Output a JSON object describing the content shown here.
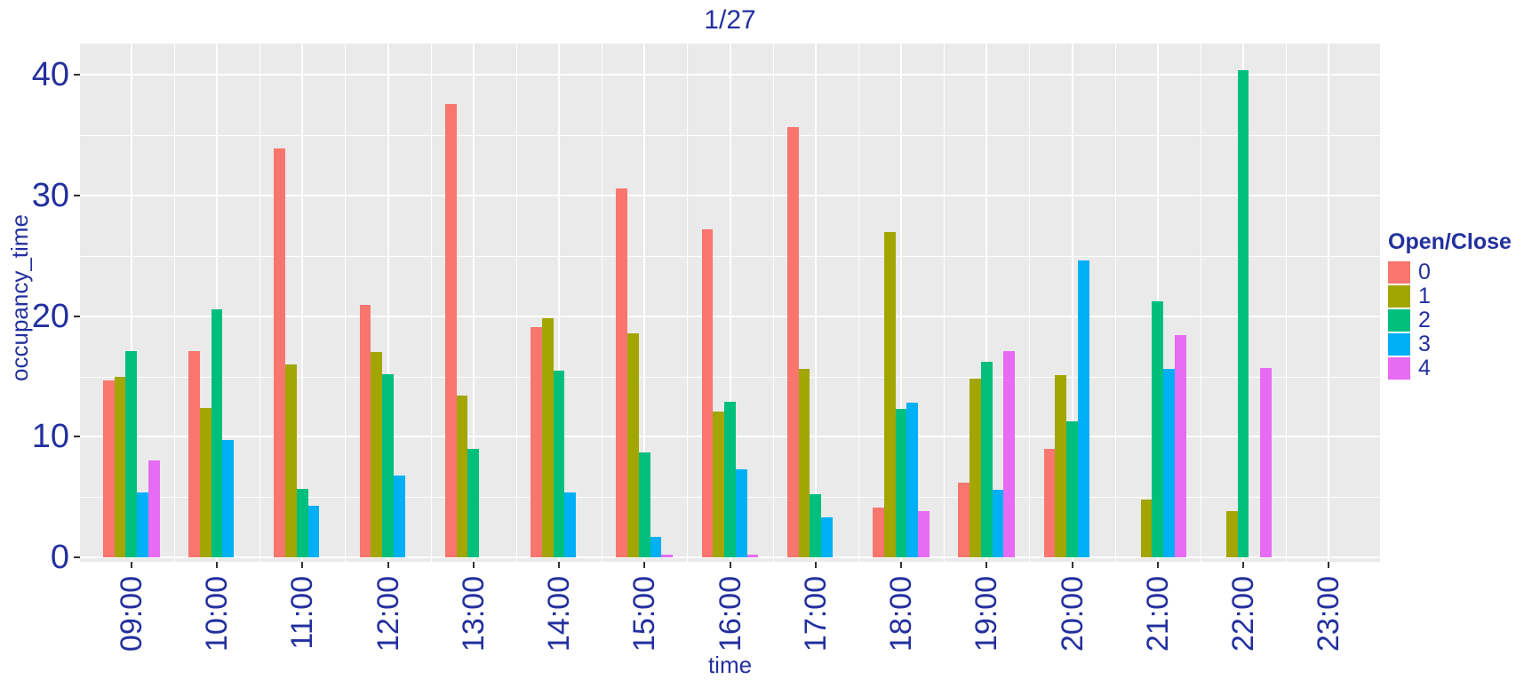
{
  "title": "1/27",
  "y_axis": {
    "label": "occupancy_time",
    "ticks": [
      0,
      10,
      20,
      30,
      40
    ]
  },
  "x_axis": {
    "label": "time"
  },
  "legend": {
    "title": "Open/Close"
  },
  "chart_data": {
    "type": "bar",
    "title": "1/27",
    "xlabel": "time",
    "ylabel": "occupancy_time",
    "ylim": [
      0,
      42.6
    ],
    "grid": true,
    "legend_title": "Open/Close",
    "legend_position": "right",
    "bar_mode": "grouped",
    "categories": [
      "09:00",
      "10:00",
      "11:00",
      "12:00",
      "13:00",
      "14:00",
      "15:00",
      "16:00",
      "17:00",
      "18:00",
      "19:00",
      "20:00",
      "21:00",
      "22:00",
      "23:00"
    ],
    "series": [
      {
        "name": "0",
        "color": "#F8766D",
        "values": [
          14.7,
          17.1,
          33.9,
          20.9,
          37.6,
          19.1,
          30.6,
          27.2,
          35.7,
          4.1,
          6.2,
          9.0,
          0,
          0,
          0
        ]
      },
      {
        "name": "1",
        "color": "#A3A500",
        "values": [
          15.0,
          12.4,
          16.0,
          17.0,
          13.4,
          19.8,
          18.6,
          12.1,
          15.6,
          27.0,
          14.8,
          15.1,
          4.8,
          3.8,
          0
        ]
      },
      {
        "name": "2",
        "color": "#00BF7D",
        "values": [
          17.1,
          20.6,
          5.7,
          15.2,
          9.0,
          15.5,
          8.7,
          12.9,
          5.2,
          12.3,
          16.2,
          11.3,
          21.2,
          40.4,
          0
        ]
      },
      {
        "name": "3",
        "color": "#00B0F6",
        "values": [
          5.4,
          9.7,
          4.3,
          6.8,
          0,
          5.4,
          1.7,
          7.3,
          3.3,
          12.8,
          5.6,
          24.6,
          15.6,
          0,
          0
        ]
      },
      {
        "name": "4",
        "color": "#E76BF3",
        "values": [
          8.0,
          0,
          0,
          0,
          0,
          0,
          0.2,
          0.2,
          0,
          3.8,
          17.1,
          0,
          18.4,
          15.7,
          0
        ]
      }
    ]
  }
}
